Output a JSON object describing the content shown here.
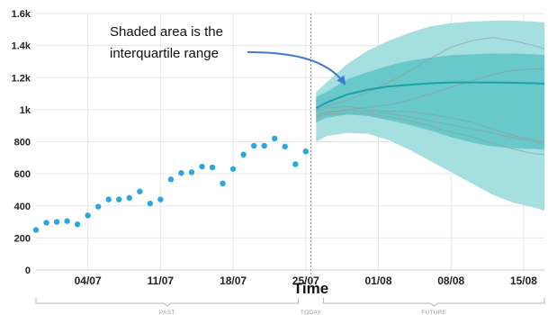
{
  "chart_data": {
    "type": "scatter",
    "title": "",
    "xlabel": "Time",
    "ylabel": "",
    "y_ticks": [
      "0",
      "200",
      "400",
      "600",
      "800",
      "1k",
      "1.2k",
      "1.4k",
      "1.6k"
    ],
    "ylim": [
      0,
      1600
    ],
    "xlim": [
      "2024-06-29",
      "2024-08-17"
    ],
    "x_ticks": [
      {
        "date": "2024-07-04",
        "label": "04/07"
      },
      {
        "date": "2024-07-11",
        "label": "11/07"
      },
      {
        "date": "2024-07-18",
        "label": "18/07"
      },
      {
        "date": "2024-07-25",
        "label": "25/07"
      },
      {
        "date": "2024-08-01",
        "label": "01/08"
      },
      {
        "date": "2024-08-08",
        "label": "08/08"
      },
      {
        "date": "2024-08-15",
        "label": "15/08"
      }
    ],
    "grid": true,
    "today": {
      "date": "2024-07-26",
      "label": "TODAY"
    },
    "periods": [
      {
        "label": "PAST",
        "start": "2024-06-29",
        "end": "2024-07-26"
      },
      {
        "label": "FUTURE",
        "start": "2024-07-27",
        "end": "2024-08-17"
      }
    ],
    "observed": {
      "color": "#29a8e0",
      "dates": [
        "2024-06-29",
        "2024-06-30",
        "2024-07-01",
        "2024-07-02",
        "2024-07-03",
        "2024-07-04",
        "2024-07-05",
        "2024-07-06",
        "2024-07-07",
        "2024-07-08",
        "2024-07-09",
        "2024-07-10",
        "2024-07-11",
        "2024-07-12",
        "2024-07-13",
        "2024-07-14",
        "2024-07-15",
        "2024-07-16",
        "2024-07-17",
        "2024-07-18",
        "2024-07-19",
        "2024-07-20",
        "2024-07-21",
        "2024-07-22",
        "2024-07-23",
        "2024-07-24",
        "2024-07-25"
      ],
      "values": [
        250,
        295,
        300,
        305,
        285,
        340,
        395,
        440,
        440,
        450,
        490,
        415,
        440,
        565,
        605,
        610,
        645,
        640,
        540,
        630,
        720,
        775,
        775,
        820,
        770,
        660,
        740
      ]
    },
    "forecast": {
      "dates": [
        "2024-07-26",
        "2024-07-27",
        "2024-07-29",
        "2024-07-31",
        "2024-08-02",
        "2024-08-04",
        "2024-08-06",
        "2024-08-08",
        "2024-08-10",
        "2024-08-12",
        "2024-08-14",
        "2024-08-16",
        "2024-08-17"
      ],
      "median": [
        1010,
        1045,
        1095,
        1125,
        1145,
        1155,
        1165,
        1170,
        1170,
        1170,
        1168,
        1165,
        1162
      ],
      "iqr_low": [
        920,
        950,
        970,
        960,
        935,
        905,
        870,
        830,
        795,
        770,
        760,
        755,
        750
      ],
      "iqr_high": [
        1080,
        1110,
        1190,
        1235,
        1275,
        1305,
        1325,
        1340,
        1345,
        1350,
        1350,
        1345,
        1340
      ],
      "outer_low": [
        800,
        835,
        855,
        850,
        810,
        750,
        680,
        610,
        540,
        470,
        420,
        390,
        370
      ],
      "outer_high": [
        1110,
        1170,
        1285,
        1370,
        1430,
        1480,
        1520,
        1540,
        1550,
        1555,
        1555,
        1550,
        1545
      ],
      "samples": [
        [
          1000,
          1020,
          1060,
          1110,
          1170,
          1240,
          1320,
          1390,
          1430,
          1450,
          1430,
          1400,
          1380
        ],
        [
          970,
          985,
          1000,
          1015,
          1030,
          1060,
          1100,
          1140,
          1180,
          1220,
          1245,
          1255,
          1250
        ],
        [
          990,
          1010,
          1020,
          1000,
          990,
          990,
          970,
          950,
          920,
          880,
          840,
          810,
          800
        ],
        [
          950,
          970,
          980,
          975,
          955,
          930,
          900,
          860,
          830,
          790,
          755,
          725,
          720
        ],
        [
          960,
          980,
          995,
          990,
          975,
          955,
          930,
          905,
          880,
          855,
          825,
          800,
          790
        ]
      ],
      "colors": {
        "outer": "#a6dfdf",
        "iqr": "#69c8c9",
        "median": "#17a3a8",
        "samples": "#8f9fa0"
      }
    },
    "annotation": {
      "lines": [
        "Shaded area is the",
        "interquartile range"
      ],
      "arrow_color": "#3d7cc9"
    }
  }
}
